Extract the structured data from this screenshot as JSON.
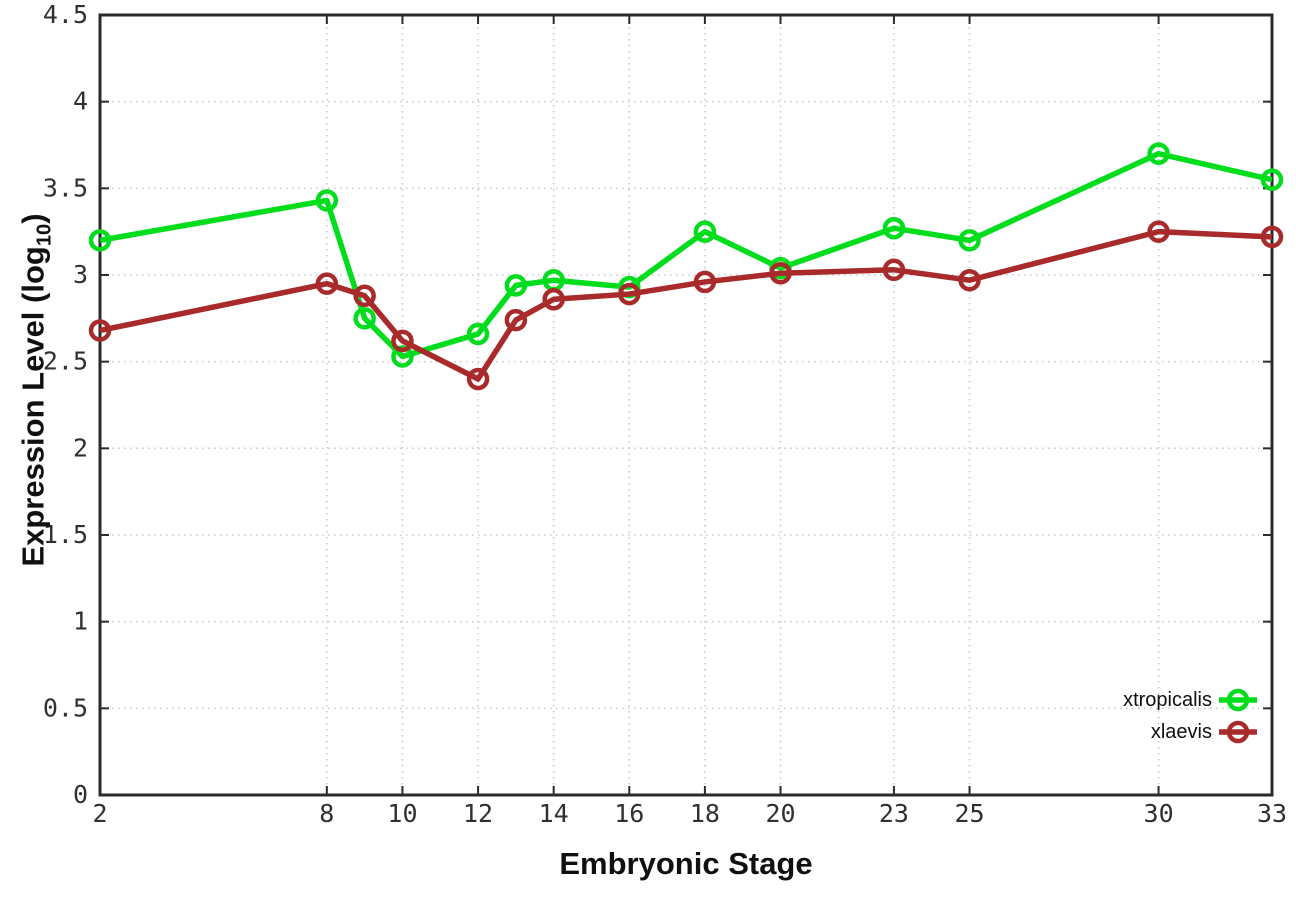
{
  "figure": {
    "background": "#ffffff",
    "title": ""
  },
  "axis_titles": {
    "x": "Embryonic Stage",
    "y_full": "Expression Level (log10)",
    "y_prefix": "Expression Level (log",
    "y_sub": "10",
    "y_suffix": ")"
  },
  "colors": {
    "border": "#2b2b2b",
    "grid": "#c9c9c9",
    "tick_text": "#303030",
    "label_text": "#101010",
    "xtropicalis": "#00dd1c",
    "xlaevis": "#a82a2a"
  },
  "chart_data": {
    "type": "line",
    "title": "",
    "xlabel": "Embryonic Stage",
    "ylabel": "Expression Level (log10)",
    "marker": "open-circle",
    "grid": true,
    "legend_position": "inside-bottom-right",
    "xlim": [
      2,
      33
    ],
    "ylim": [
      0,
      4.5
    ],
    "xticks": [
      2,
      8,
      10,
      12,
      14,
      16,
      18,
      20,
      23,
      25,
      30,
      33
    ],
    "yticks": [
      0,
      0.5,
      1,
      1.5,
      2,
      2.5,
      3,
      3.5,
      4,
      4.5
    ],
    "x": [
      2,
      8,
      9,
      10,
      12,
      13,
      14,
      16,
      18,
      20,
      23,
      25,
      30,
      33
    ],
    "series": [
      {
        "name": "xtropicalis",
        "color": "#00dd1c",
        "values": [
          3.2,
          3.43,
          2.75,
          2.53,
          2.66,
          2.94,
          2.97,
          2.93,
          3.25,
          3.04,
          3.27,
          3.2,
          3.7,
          3.55
        ]
      },
      {
        "name": "xlaevis",
        "color": "#a82a2a",
        "values": [
          2.68,
          2.95,
          2.88,
          2.62,
          2.4,
          2.74,
          2.86,
          2.89,
          2.96,
          3.01,
          3.03,
          2.97,
          3.25,
          3.22
        ]
      }
    ]
  }
}
